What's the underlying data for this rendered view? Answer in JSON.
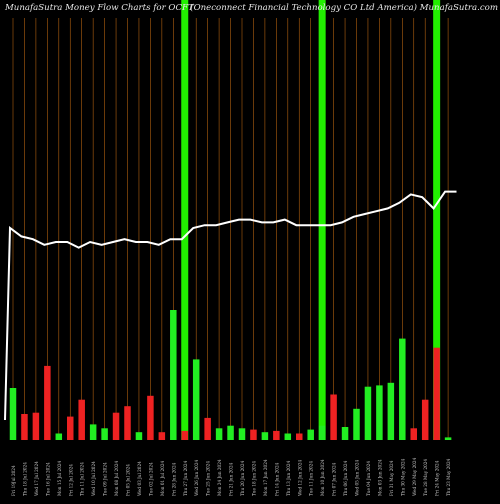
{
  "header": {
    "title_left": "MunafaSutra  Money Flow  Charts for OCFT",
    "title_right": "(Oneconnect Financial Technology CO Ltd America) MunafaSutra.com"
  },
  "chart_data": {
    "type": "bar",
    "title": "MunafaSutra  Money Flow  Charts for OCFT",
    "subtitle": "(Oneconnect Financial Technology CO Ltd America) MunafaSutra.com",
    "categories": [
      "Fri 19Jul 2024",
      "Thu 18 Jul 2024",
      "Wed 17 Jul 2024",
      "Tue 16 Jul 2024",
      "Mon 15 Jul 2024",
      "Fri 12 Jul 2024",
      "Thu 11 Jul 2024",
      "Wed 10 Jul 2024",
      "Tue 09 Jul 2024",
      "Mon 08 Jul 2024",
      "Fri 05 Jul 2024",
      "Wed 03 Jul 2024",
      "Tue 02 Jul 2024",
      "Mon 01 Jul 2024",
      "Fri 28 Jun 2024",
      "Thu 27 Jun 2024",
      "Wed 26 Jun 2024",
      "Tue 25 Jun 2024",
      "Mon 24 Jun 2024",
      "Fri 21 Jun 2024",
      "Thu 20 Jun 2024",
      "Tue 18 Jun 2024",
      "Mon 17 Jun 2024",
      "Fri 14 Jun 2024",
      "Thu 13 Jun 2024",
      "Wed 12 Jun 2024",
      "Tue 11 Jun 2024",
      "Mon 10 Jun 2024",
      "Fri 07 Jun 2024",
      "Thu 06 Jun 2024",
      "Wed 05 Jun 2024",
      "Tue 04 Jun 2024",
      "Mon 03 Jun 2024",
      "Fri 31 May 2024",
      "Thu 30 May 2024",
      "Wed 29 May 2024",
      "Tue 28 May 2024",
      "Fri 24 May 2024",
      "Thu 23 May 2024"
    ],
    "values": [
      40,
      20,
      21,
      57,
      5,
      18,
      31,
      12,
      9,
      21,
      26,
      6,
      34,
      6,
      100,
      7,
      62,
      17,
      9,
      11,
      9,
      8,
      6,
      7,
      5,
      5,
      8,
      11,
      35,
      10,
      24,
      41,
      42,
      44,
      78,
      9,
      31,
      71,
      2
    ],
    "directions": [
      "up",
      "down",
      "down",
      "down",
      "up",
      "down",
      "down",
      "up",
      "up",
      "down",
      "down",
      "up",
      "down",
      "down",
      "up",
      "down",
      "up",
      "down",
      "up",
      "up",
      "up",
      "down",
      "up",
      "down",
      "up",
      "down",
      "up",
      "up",
      "down",
      "up",
      "up",
      "up",
      "up",
      "up",
      "up",
      "down",
      "down",
      "down",
      "up"
    ],
    "highlighted": [
      false,
      false,
      false,
      false,
      false,
      false,
      false,
      false,
      false,
      false,
      false,
      false,
      false,
      false,
      false,
      true,
      false,
      false,
      false,
      false,
      false,
      false,
      false,
      false,
      false,
      false,
      false,
      true,
      false,
      false,
      false,
      false,
      false,
      false,
      false,
      false,
      false,
      true,
      false
    ],
    "price_line": [
      100,
      97,
      96,
      94,
      95,
      95,
      93,
      95,
      94,
      95,
      96,
      95,
      95,
      94,
      96,
      96,
      100,
      101,
      101,
      102,
      103,
      103,
      102,
      102,
      103,
      101,
      101,
      101,
      101,
      102,
      104,
      105,
      106,
      107,
      109,
      112,
      111,
      107,
      113,
      113
    ],
    "series": [
      {
        "name": "",
        "values": [
          40,
          20,
          21,
          57,
          5,
          18,
          31,
          12,
          9,
          21,
          26,
          6,
          34,
          6,
          100,
          7,
          62,
          17,
          9,
          11,
          9,
          8,
          6,
          7,
          5,
          5,
          8,
          11,
          35,
          10,
          24,
          41,
          42,
          44,
          78,
          9,
          31,
          71,
          2
        ]
      }
    ],
    "colors": {
      "up": "#22ee22",
      "down": "#ee2222",
      "highlight": "#22ee00",
      "grid": "#b06010",
      "line": "#ffffff",
      "background": "#000000",
      "label": "#c8c8c8"
    },
    "grid": true,
    "xlabel": "",
    "ylabel": ""
  }
}
